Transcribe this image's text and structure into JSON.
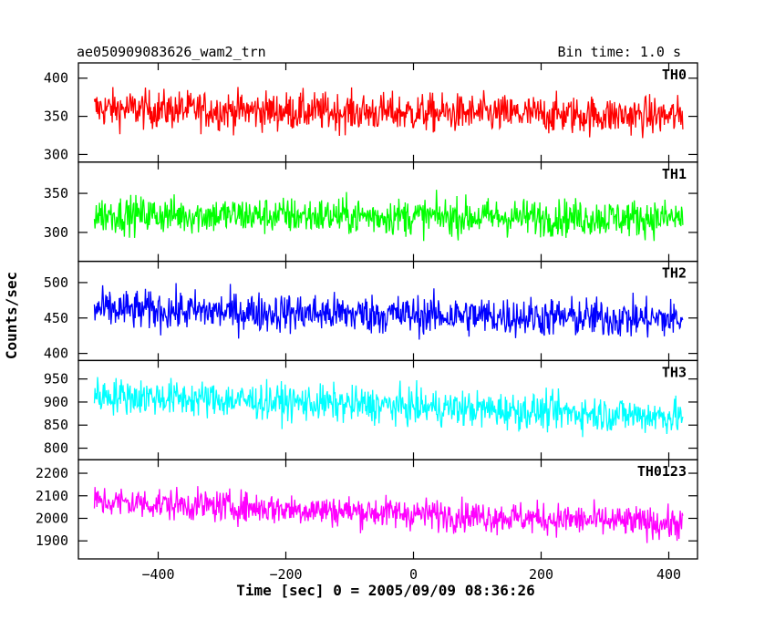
{
  "chart_data": {
    "type": "line",
    "title": "ae050909083626_wam2_trn",
    "subtitle": "Bin time: 1.0 s",
    "xlabel": "Time [sec] 0 = 2005/09/09 08:36:26",
    "ylabel": "Counts/sec",
    "xlim": [
      -525,
      445
    ],
    "x_range": [
      -500,
      422
    ],
    "x_ticks": [
      -400,
      -200,
      0,
      200,
      400
    ],
    "x_tick_labels": [
      "−400",
      "−200",
      "0",
      "200",
      "400"
    ],
    "grid": false,
    "panels": [
      {
        "name": "TH0",
        "color": "#ff0000",
        "ylim": [
          290,
          420
        ],
        "y_ticks": [
          300,
          350,
          400
        ],
        "y_tick_labels": [
          "300",
          "350",
          "400"
        ],
        "mean_start": 360,
        "mean_end": 350,
        "noise": 18
      },
      {
        "name": "TH1",
        "color": "#00ff00",
        "ylim": [
          263,
          390
        ],
        "y_ticks": [
          300,
          350
        ],
        "y_tick_labels": [
          "300",
          "350"
        ],
        "mean_start": 323,
        "mean_end": 318,
        "noise": 17
      },
      {
        "name": "TH2",
        "color": "#0000ff",
        "ylim": [
          390,
          530
        ],
        "y_ticks": [
          400,
          450,
          500
        ],
        "y_tick_labels": [
          "400",
          "450",
          "500"
        ],
        "mean_start": 462,
        "mean_end": 448,
        "noise": 20
      },
      {
        "name": "TH3",
        "color": "#00ffff",
        "ylim": [
          775,
          990
        ],
        "y_ticks": [
          800,
          850,
          900,
          950
        ],
        "y_tick_labels": [
          "800",
          "850",
          "900",
          "950"
        ],
        "mean_start": 915,
        "mean_end": 868,
        "noise": 28
      },
      {
        "name": "TH0123",
        "color": "#ff00ff",
        "ylim": [
          1820,
          2260
        ],
        "y_ticks": [
          1900,
          2000,
          2100,
          2200
        ],
        "y_tick_labels": [
          "1900",
          "2000",
          "2100",
          "2200"
        ],
        "mean_start": 2075,
        "mean_end": 1975,
        "noise": 50
      }
    ]
  }
}
